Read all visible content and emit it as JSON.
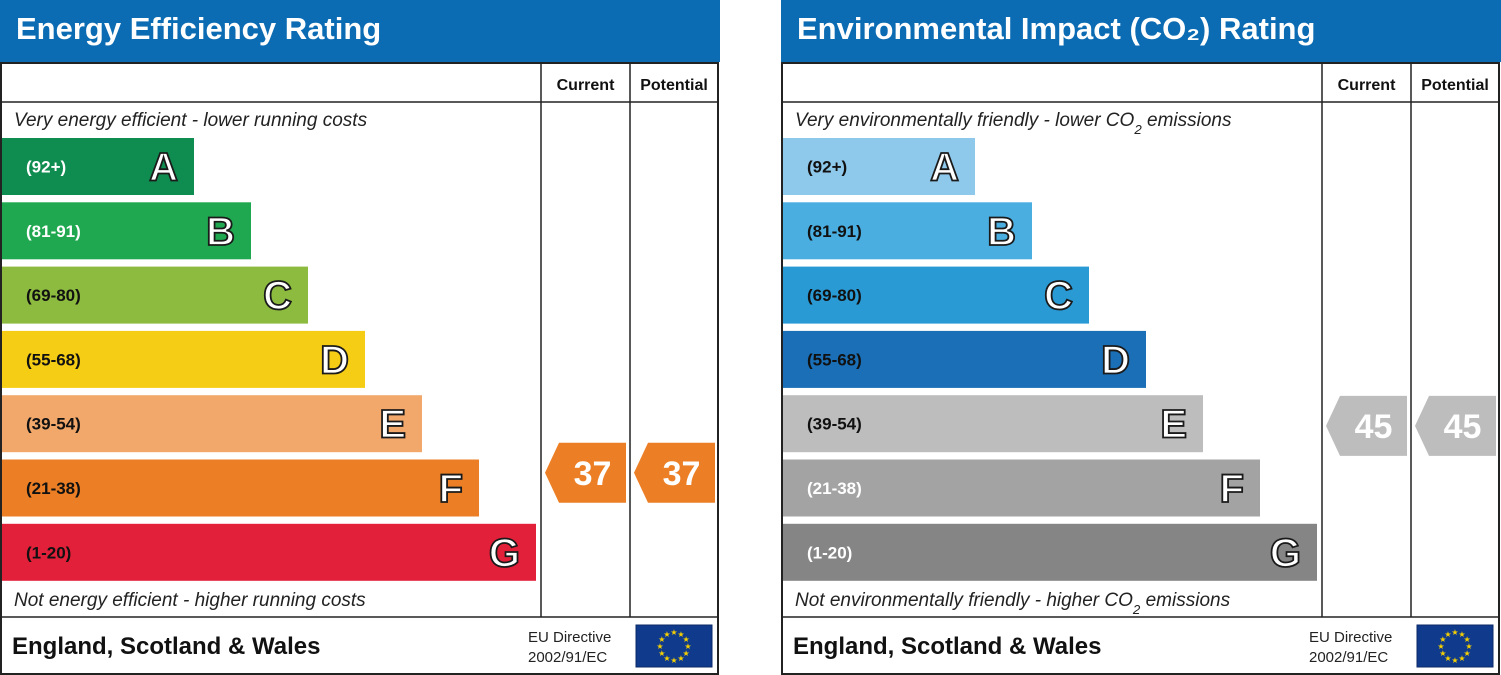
{
  "chart_data": [
    {
      "type": "bar",
      "title": "Energy Efficiency Rating",
      "columns": [
        "Current",
        "Potential"
      ],
      "top_note": "Very energy efficient - lower running costs",
      "bottom_note": "Not energy efficient - higher running costs",
      "footer_region": "England, Scotland & Wales",
      "footer_directive": [
        "EU Directive",
        "2002/91/EC"
      ],
      "bands": [
        {
          "letter": "A",
          "range": "(92+)",
          "color": "#0f8c4f",
          "text_color": "#ffffff"
        },
        {
          "letter": "B",
          "range": "(81-91)",
          "color": "#1fa84f",
          "text_color": "#ffffff"
        },
        {
          "letter": "C",
          "range": "(69-80)",
          "color": "#8dbb3f",
          "text_color": "#111111"
        },
        {
          "letter": "D",
          "range": "(55-68)",
          "color": "#f6cd15",
          "text_color": "#111111"
        },
        {
          "letter": "E",
          "range": "(39-54)",
          "color": "#f2a86b",
          "text_color": "#111111"
        },
        {
          "letter": "F",
          "range": "(21-38)",
          "color": "#ec7f25",
          "text_color": "#111111"
        },
        {
          "letter": "G",
          "range": "(1-20)",
          "color": "#e3203a",
          "text_color": "#111111"
        }
      ],
      "current": {
        "value": 37,
        "color": "#ec7f25"
      },
      "potential": {
        "value": 37,
        "color": "#ec7f25"
      }
    },
    {
      "type": "bar",
      "title": "Environmental Impact (CO₂) Rating",
      "columns": [
        "Current",
        "Potential"
      ],
      "top_note": "Very environmentally friendly - lower CO₂ emissions",
      "bottom_note": "Not environmentally friendly - higher CO₂ emissions",
      "footer_region": "England, Scotland & Wales",
      "footer_directive": [
        "EU Directive",
        "2002/91/EC"
      ],
      "bands": [
        {
          "letter": "A",
          "range": "(92+)",
          "color": "#8ec8ea",
          "text_color": "#111111"
        },
        {
          "letter": "B",
          "range": "(81-91)",
          "color": "#4aaee0",
          "text_color": "#111111"
        },
        {
          "letter": "C",
          "range": "(69-80)",
          "color": "#2a9ad5",
          "text_color": "#111111"
        },
        {
          "letter": "D",
          "range": "(55-68)",
          "color": "#1a6fb6",
          "text_color": "#111111"
        },
        {
          "letter": "E",
          "range": "(39-54)",
          "color": "#bdbdbd",
          "text_color": "#111111"
        },
        {
          "letter": "F",
          "range": "(21-38)",
          "color": "#a3a3a3",
          "text_color": "#ffffff"
        },
        {
          "letter": "G",
          "range": "(1-20)",
          "color": "#858585",
          "text_color": "#ffffff"
        }
      ],
      "current": {
        "value": 45,
        "color": "#bdbdbd"
      },
      "potential": {
        "value": 45,
        "color": "#bdbdbd"
      }
    }
  ]
}
